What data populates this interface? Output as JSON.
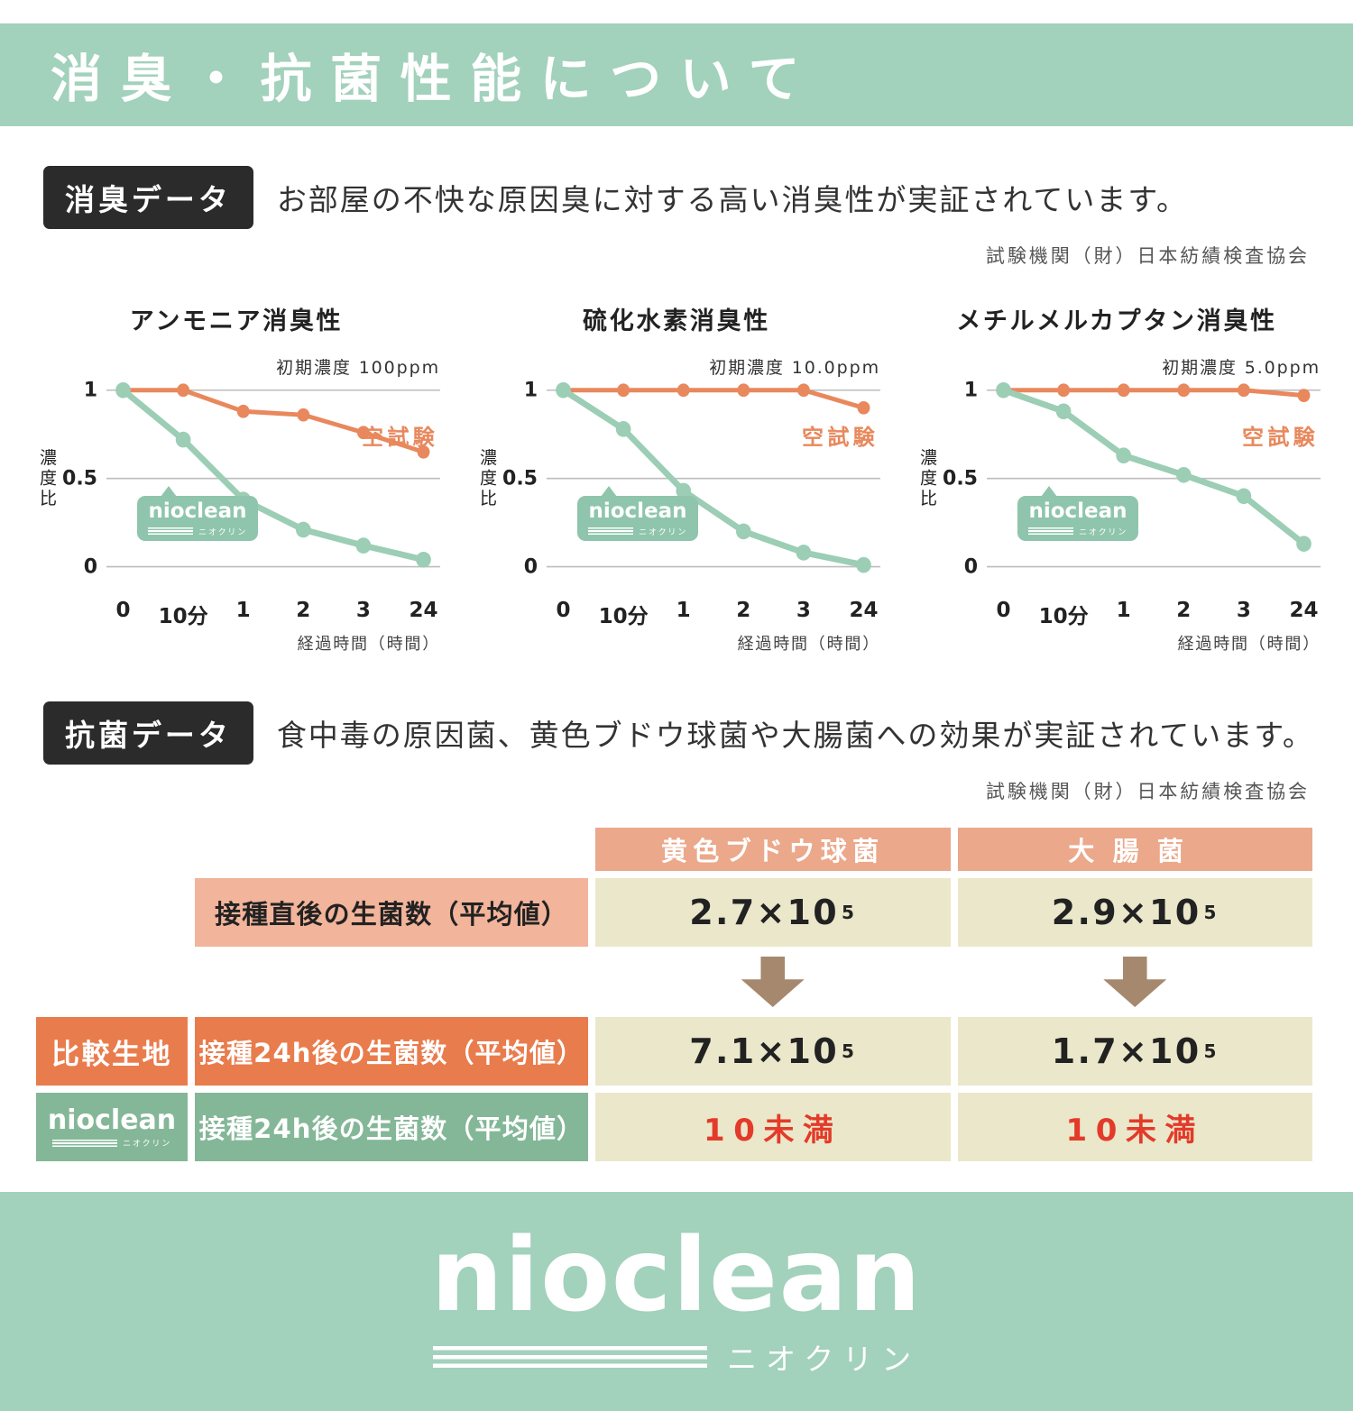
{
  "colors": {
    "band_green": "#a2d1bc",
    "chart_orange": "#e8885c",
    "chart_green": "#9ccdb5",
    "badge_black": "#2b2b2b",
    "table_header_salmon": "#eba88b",
    "table_label_salmon": "#f2b49a",
    "cream": "#ebe7ca",
    "row_orange": "#e97c4d",
    "row_green": "#84b798",
    "arrow_brown": "#a5886d",
    "red": "#e33a2a"
  },
  "header": {
    "title": "消臭・抗菌性能について"
  },
  "deodorize": {
    "badge": "消臭データ",
    "description": "お部屋の不快な原因臭に対する高い消臭性が実証されています。",
    "agency": "試験機関（財）日本紡績検査協会"
  },
  "chart_data": [
    {
      "type": "line",
      "title": "アンモニア消臭性",
      "initial_label": "初期濃度 100ppm",
      "ylabel": "濃度比",
      "xlabel": "経過時間（時間）",
      "categories": [
        "0",
        "10分",
        "1",
        "2",
        "3",
        "24"
      ],
      "ylim": [
        0,
        1
      ],
      "ytick_values": [
        1,
        0.5,
        0
      ],
      "grid": true,
      "series": [
        {
          "name": "空試験",
          "color": "#e8885c",
          "values": [
            1,
            1,
            0.88,
            0.86,
            0.76,
            0.65
          ]
        },
        {
          "name": "nioclean",
          "color": "#9ccdb5",
          "values": [
            1,
            0.72,
            0.38,
            0.21,
            0.12,
            0.04
          ]
        }
      ]
    },
    {
      "type": "line",
      "title": "硫化水素消臭性",
      "initial_label": "初期濃度 10.0ppm",
      "ylabel": "濃度比",
      "xlabel": "経過時間（時間）",
      "categories": [
        "0",
        "10分",
        "1",
        "2",
        "3",
        "24"
      ],
      "ylim": [
        0,
        1
      ],
      "ytick_values": [
        1,
        0.5,
        0
      ],
      "grid": true,
      "series": [
        {
          "name": "空試験",
          "color": "#e8885c",
          "values": [
            1,
            1,
            1,
            1,
            1,
            0.9
          ]
        },
        {
          "name": "nioclean",
          "color": "#9ccdb5",
          "values": [
            1,
            0.78,
            0.43,
            0.2,
            0.08,
            0.01
          ]
        }
      ]
    },
    {
      "type": "line",
      "title": "メチルメルカプタン消臭性",
      "initial_label": "初期濃度 5.0ppm",
      "ylabel": "濃度比",
      "xlabel": "経過時間（時間）",
      "categories": [
        "0",
        "10分",
        "1",
        "2",
        "3",
        "24"
      ],
      "ylim": [
        0,
        1
      ],
      "ytick_values": [
        1,
        0.5,
        0
      ],
      "grid": true,
      "series": [
        {
          "name": "空試験",
          "color": "#e8885c",
          "values": [
            1,
            1,
            1,
            1,
            1,
            0.97
          ]
        },
        {
          "name": "nioclean",
          "color": "#9ccdb5",
          "values": [
            1,
            0.88,
            0.63,
            0.52,
            0.4,
            0.13
          ]
        }
      ]
    }
  ],
  "antibacterial": {
    "badge": "抗菌データ",
    "description": "食中毒の原因菌、黄色ブドウ球菌や大腸菌への効果が実証されています。",
    "agency": "試験機関（財）日本紡績検査協会",
    "table": {
      "col_headers": [
        "黄色ブドウ球菌",
        "大腸菌"
      ],
      "row_initial": {
        "label": "接種直後の生菌数（平均値）",
        "values": [
          {
            "base": "2.7×10",
            "exp": "5"
          },
          {
            "base": "2.9×10",
            "exp": "5"
          }
        ]
      },
      "row_compare": {
        "side": "比較生地",
        "label": "接種24h後の生菌数（平均値）",
        "values": [
          {
            "base": "7.1×10",
            "exp": "5"
          },
          {
            "base": "1.7×10",
            "exp": "5"
          }
        ]
      },
      "row_nioclean": {
        "side_logo": "nioclean",
        "side_logo_sub": "ニオクリン",
        "label": "接種24h後の生菌数（平均値）",
        "values": [
          {
            "text": "10未満"
          },
          {
            "text": "10未満"
          }
        ]
      }
    }
  },
  "logo": {
    "name": "nioclean",
    "sub": "ニオクリン"
  }
}
